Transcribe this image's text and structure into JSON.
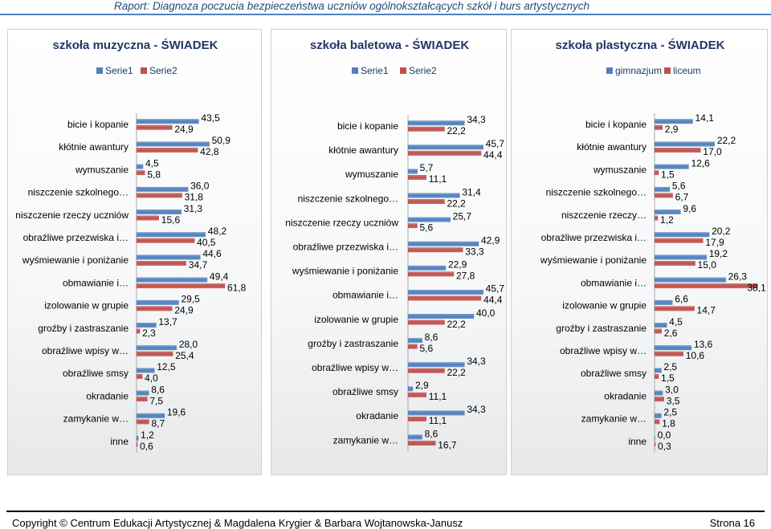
{
  "header": {
    "title": "Raport: Diagnoza poczucia bezpieczeństwa uczniów ogólnokształcących szkół i burs artystycznych"
  },
  "footer": {
    "copyright": "Copyright © Centrum Edukacji Artystycznej & Magdalena Krygier & Barbara Wojtanowska-Janusz",
    "page": "Strona 16"
  },
  "colors": {
    "series1": "#4f81bd",
    "series2": "#c0504d",
    "title": "#1f3864"
  },
  "chart_data": [
    {
      "type": "bar",
      "orientation": "horizontal",
      "title": "szkoła muzyczna - ŚWIADEK",
      "legend": "top-center",
      "categories": [
        "bicie i kopanie",
        "kłótnie awantury",
        "wymuszanie",
        "niszczenie szkolnego…",
        "niszczenie rzeczy uczniów",
        "obraźliwe przezwiska i…",
        "wyśmiewanie i poniżanie",
        "obmawianie i…",
        "izolowanie w grupie",
        "groźby i zastraszanie",
        "obraźliwe wpisy w…",
        "obraźliwe smsy",
        "okradanie",
        "zamykanie w…",
        "inne"
      ],
      "series": [
        {
          "name": "Serie1",
          "values": [
            43.5,
            50.9,
            4.5,
            36.0,
            31.3,
            48.2,
            44.6,
            49.4,
            29.5,
            13.7,
            28.0,
            12.5,
            8.6,
            19.6,
            1.2
          ],
          "labels": [
            "43,5",
            "50,9",
            "4,5",
            "36,0",
            "31,3",
            "48,2",
            "44,6",
            "49,4",
            "29,5",
            "13,7",
            "28,0",
            "12,5",
            "8,6",
            "19,6",
            "1,2"
          ]
        },
        {
          "name": "Serie2",
          "values": [
            24.9,
            42.8,
            5.8,
            31.8,
            15.6,
            40.5,
            34.7,
            61.8,
            24.9,
            2.3,
            25.4,
            4.0,
            7.5,
            8.7,
            0.6
          ],
          "labels": [
            "24,9",
            "42,8",
            "5,8",
            "31,8",
            "15,6",
            "40,5",
            "34,7",
            "61,8",
            "24,9",
            "2,3",
            "25,4",
            "4,0",
            "7,5",
            "8,7",
            "0,6"
          ]
        }
      ],
      "xlim": [
        0,
        65
      ]
    },
    {
      "type": "bar",
      "orientation": "horizontal",
      "title": "szkoła baletowa - ŚWIADEK",
      "legend": "top-center",
      "categories": [
        "bicie i kopanie",
        "kłótnie awantury",
        "wymuszanie",
        "niszczenie szkolnego…",
        "niszczenie rzeczy uczniów",
        "obraźliwe przezwiska i…",
        "wyśmiewanie i poniżanie",
        "obmawianie i…",
        "izolowanie w grupie",
        "groźby i zastraszanie",
        "obraźliwe wpisy w…",
        "obraźliwe smsy",
        "okradanie",
        "zamykanie w…"
      ],
      "series": [
        {
          "name": "Serie1",
          "values": [
            34.3,
            45.7,
            5.7,
            31.4,
            25.7,
            42.9,
            22.9,
            45.7,
            40.0,
            8.6,
            34.3,
            2.9,
            34.3,
            8.6
          ],
          "labels": [
            "34,3",
            "45,7",
            "5,7",
            "31,4",
            "25,7",
            "42,9",
            "22,9",
            "45,7",
            "40,0",
            "8,6",
            "34,3",
            "2,9",
            "34,3",
            "8,6"
          ]
        },
        {
          "name": "Serie2",
          "values": [
            22.2,
            44.4,
            11.1,
            22.2,
            5.6,
            33.3,
            27.8,
            44.4,
            22.2,
            5.6,
            22.2,
            11.1,
            11.1,
            16.7
          ],
          "labels": [
            "22,2",
            "44,4",
            "11,1",
            "22,2",
            "5,6",
            "33,3",
            "27,8",
            "44,4",
            "22,2",
            "5,6",
            "22,2",
            "11,1",
            "11,1",
            "16,7"
          ]
        }
      ],
      "xlim": [
        0,
        50
      ]
    },
    {
      "type": "bar",
      "orientation": "horizontal",
      "title": "szkoła plastyczna - ŚWIADEK",
      "legend": "top-center",
      "categories": [
        "bicie i kopanie",
        "kłótnie awantury",
        "wymuszanie",
        "niszczenie szkolnego…",
        "niszczenie rzeczy…",
        "obraźliwe przezwiska i…",
        "wyśmiewanie i poniżanie",
        "obmawianie i…",
        "izolowanie w grupie",
        "groźby i zastraszanie",
        "obraźliwe wpisy w…",
        "obraźliwe smsy",
        "okradanie",
        "zamykanie w…",
        "inne"
      ],
      "series": [
        {
          "name": "gimnazjum",
          "values": [
            14.1,
            22.2,
            12.6,
            5.6,
            9.6,
            20.2,
            19.2,
            26.3,
            6.6,
            4.5,
            13.6,
            2.5,
            3.0,
            2.5,
            0.0
          ],
          "labels": [
            "14,1",
            "22,2",
            "12,6",
            "5,6",
            "9,6",
            "20,2",
            "19,2",
            "26,3",
            "6,6",
            "4,5",
            "13,6",
            "2,5",
            "3,0",
            "2,5",
            "0,0"
          ]
        },
        {
          "name": "liceum",
          "values": [
            2.9,
            17.0,
            1.5,
            6.7,
            1.2,
            17.9,
            15.0,
            38.1,
            14.7,
            2.6,
            10.6,
            1.5,
            3.5,
            1.8,
            0.3
          ],
          "labels": [
            "2,9",
            "17,0",
            "1,5",
            "6,7",
            "1,2",
            "17,9",
            "15,0",
            "38,1",
            "14,7",
            "2,6",
            "10,6",
            "1,5",
            "3,5",
            "1,8",
            "0,3"
          ]
        }
      ],
      "xlim": [
        0,
        42
      ]
    }
  ]
}
